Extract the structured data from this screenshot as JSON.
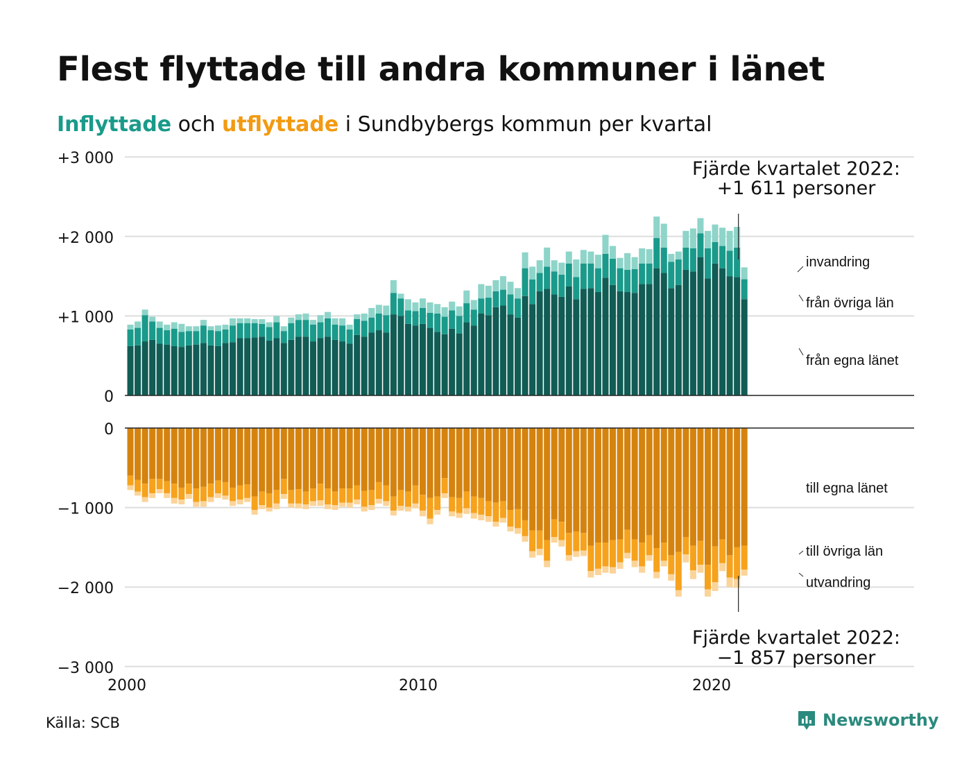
{
  "title": "Flest flyttade till andra kommuner i länet",
  "subtitle": {
    "in_word": "Inflyttade",
    "and_word": " och ",
    "out_word": "utflyttade",
    "rest": " i Sundbybergs  kommun per kvartal",
    "in_color": "#1a9a8a",
    "out_color": "#f29a12"
  },
  "source": "Källa: SCB",
  "brand": {
    "name": "Newsworthy",
    "icon": "newsworthy-logo-icon",
    "color": "#2a8a7d"
  },
  "colors": {
    "in_egna": "#115c55",
    "in_ovriga": "#1a9a8a",
    "in_invandring": "#8ed4c9",
    "out_egna": "#d5830f",
    "out_ovriga": "#f6a21d",
    "out_utvandring": "#fbd49a"
  },
  "chart_data": {
    "type": "bar",
    "stacked": true,
    "x_start_year": 2000,
    "x_frequency": "quarter",
    "x_ticks": [
      "2000",
      "2010",
      "2020"
    ],
    "inflow_axis": {
      "ylim": [
        0,
        3000
      ],
      "ticks": [
        "0",
        "+1 000",
        "+2 000",
        "+3 000"
      ]
    },
    "outflow_axis": {
      "ylim": [
        -3000,
        0
      ],
      "ticks": [
        "0",
        "−1 000",
        "−2 000",
        "−3 000"
      ]
    },
    "inflow_series": [
      {
        "name": "från egna länet",
        "values": [
          620,
          630,
          680,
          700,
          650,
          640,
          620,
          610,
          630,
          640,
          660,
          630,
          620,
          660,
          670,
          720,
          720,
          730,
          740,
          690,
          720,
          660,
          700,
          740,
          740,
          680,
          720,
          740,
          700,
          680,
          650,
          760,
          740,
          790,
          820,
          790,
          1020,
          1000,
          900,
          880,
          900,
          850,
          800,
          770,
          840,
          780,
          920,
          880,
          1030,
          1010,
          1110,
          1130,
          1020,
          980,
          1250,
          1150,
          1310,
          1340,
          1270,
          1240,
          1370,
          1210,
          1340,
          1350,
          1300,
          1480,
          1390,
          1310,
          1300,
          1290,
          1400,
          1400,
          1600,
          1540,
          1350,
          1390,
          1580,
          1560,
          1740,
          1470,
          1660,
          1600,
          1500,
          1490,
          1211
        ]
      },
      {
        "name": "från övriga län",
        "values": [
          210,
          220,
          330,
          230,
          200,
          180,
          220,
          190,
          180,
          170,
          220,
          190,
          190,
          170,
          210,
          190,
          190,
          180,
          160,
          170,
          200,
          150,
          210,
          210,
          210,
          210,
          200,
          230,
          190,
          200,
          180,
          200,
          200,
          190,
          210,
          220,
          270,
          220,
          170,
          180,
          200,
          190,
          230,
          220,
          230,
          220,
          240,
          200,
          190,
          220,
          200,
          200,
          250,
          240,
          350,
          310,
          230,
          280,
          290,
          280,
          290,
          280,
          320,
          310,
          300,
          300,
          330,
          290,
          280,
          300,
          260,
          260,
          380,
          320,
          330,
          320,
          280,
          290,
          300,
          380,
          270,
          280,
          320,
          370,
          250
        ]
      },
      {
        "name": "invandring",
        "values": [
          60,
          80,
          70,
          60,
          80,
          70,
          80,
          100,
          60,
          60,
          70,
          50,
          70,
          60,
          90,
          60,
          60,
          50,
          60,
          60,
          80,
          60,
          70,
          70,
          80,
          60,
          90,
          80,
          80,
          90,
          60,
          60,
          90,
          120,
          110,
          120,
          160,
          60,
          140,
          110,
          120,
          130,
          120,
          120,
          110,
          120,
          160,
          120,
          180,
          150,
          140,
          170,
          160,
          130,
          200,
          160,
          160,
          240,
          140,
          150,
          150,
          220,
          170,
          150,
          170,
          240,
          160,
          130,
          210,
          150,
          190,
          180,
          270,
          300,
          100,
          100,
          210,
          250,
          190,
          220,
          220,
          230,
          250,
          260,
          150
        ]
      }
    ],
    "outflow_series": [
      {
        "name": "till egna länet",
        "values": [
          -600,
          -650,
          -700,
          -640,
          -640,
          -670,
          -700,
          -750,
          -700,
          -760,
          -740,
          -700,
          -660,
          -680,
          -750,
          -720,
          -710,
          -860,
          -800,
          -820,
          -780,
          -640,
          -780,
          -770,
          -800,
          -760,
          -700,
          -760,
          -800,
          -760,
          -760,
          -720,
          -790,
          -780,
          -680,
          -720,
          -860,
          -780,
          -800,
          -720,
          -840,
          -880,
          -860,
          -630,
          -870,
          -880,
          -800,
          -860,
          -880,
          -920,
          -940,
          -920,
          -1030,
          -1020,
          -1160,
          -1290,
          -1290,
          -1410,
          -1150,
          -1180,
          -1320,
          -1300,
          -1320,
          -1480,
          -1440,
          -1440,
          -1410,
          -1400,
          -1280,
          -1400,
          -1440,
          -1350,
          -1510,
          -1440,
          -1600,
          -1560,
          -1370,
          -1480,
          -1420,
          -1720,
          -1490,
          -1400,
          -1600,
          -1500,
          -1480
        ]
      },
      {
        "name": "till övriga län",
        "values": [
          -120,
          -150,
          -170,
          -180,
          -130,
          -150,
          -180,
          -150,
          -130,
          -170,
          -180,
          -170,
          -160,
          -170,
          -170,
          -180,
          -170,
          -170,
          -170,
          -180,
          -170,
          -190,
          -170,
          -180,
          -160,
          -160,
          -210,
          -200,
          -170,
          -180,
          -180,
          -180,
          -200,
          -190,
          -210,
          -200,
          -180,
          -200,
          -190,
          -230,
          -200,
          -260,
          -170,
          -190,
          -180,
          -190,
          -210,
          -210,
          -210,
          -190,
          -240,
          -210,
          -210,
          -240,
          -200,
          -260,
          -230,
          -260,
          -220,
          -230,
          -280,
          -250,
          -220,
          -320,
          -330,
          -300,
          -340,
          -290,
          -290,
          -270,
          -300,
          -250,
          -300,
          -230,
          -240,
          -480,
          -220,
          -310,
          -300,
          -310,
          -450,
          -300,
          -280,
          -400,
          -300
        ]
      },
      {
        "name": "utvandring",
        "values": [
          -60,
          -50,
          -60,
          -60,
          -50,
          -60,
          -70,
          -60,
          -60,
          -60,
          -70,
          -60,
          -60,
          -50,
          -60,
          -60,
          -50,
          -60,
          -50,
          -50,
          -70,
          -60,
          -50,
          -60,
          -60,
          -60,
          -70,
          -60,
          -60,
          -50,
          -60,
          -60,
          -60,
          -60,
          -60,
          -60,
          -60,
          -60,
          -60,
          -60,
          -70,
          -70,
          -60,
          -60,
          -60,
          -60,
          -70,
          -70,
          -70,
          -70,
          -60,
          -60,
          -60,
          -70,
          -70,
          -80,
          -80,
          -80,
          -70,
          -80,
          -70,
          -70,
          -70,
          -80,
          -80,
          -80,
          -80,
          -80,
          -70,
          -80,
          -80,
          -70,
          -80,
          -70,
          -80,
          -80,
          -100,
          -110,
          -100,
          -90,
          -110,
          -100,
          -120,
          -110,
          -77
        ]
      }
    ],
    "annotations": {
      "top": "Fjärde kvartalet 2022:\n+1 611 personer",
      "top_line1": "Fjärde kvartalet 2022:",
      "top_line2": "+1 611 personer",
      "bottom_line1": "Fjärde kvartalet 2022:",
      "bottom_line2": "−1 857 personer",
      "in_labels": [
        "invandring",
        "från övriga län",
        "från egna länet"
      ],
      "out_labels": [
        "till egna länet",
        "till övriga län",
        "utvandring"
      ]
    }
  }
}
